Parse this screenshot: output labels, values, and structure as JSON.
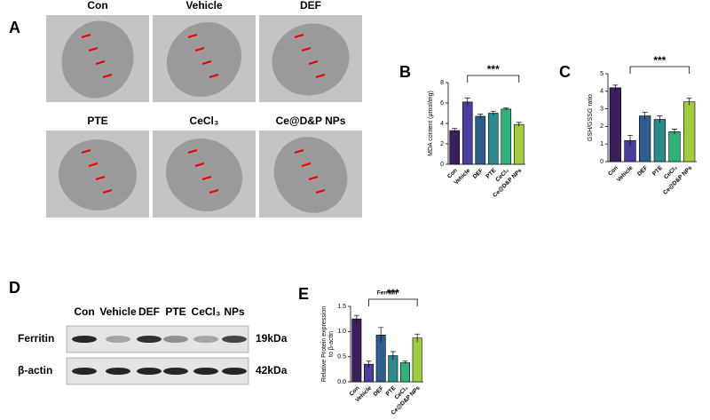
{
  "panel_labels": [
    "A",
    "B",
    "C",
    "D",
    "E"
  ],
  "micrographs": [
    "Con",
    "Vehicle",
    "DEF",
    "PTE",
    "CeCl₃",
    "Ce@D&P NPs"
  ],
  "blot": {
    "lanes": [
      "Con",
      "Vehicle",
      "DEF",
      "PTE",
      "CeCl₃",
      "NPs"
    ],
    "rows": [
      {
        "name": "Ferritin",
        "size": "19kDa"
      },
      {
        "name": "β-actin",
        "size": "42kDa"
      }
    ]
  },
  "chart_data": [
    {
      "type": "bar",
      "ylabel": "MDA content (μmol/mg)",
      "categories": [
        "Con",
        "Vehicle",
        "DEF",
        "PTE",
        "CeCl₃",
        "Ce@D&P NPs"
      ],
      "values": [
        3.3,
        6.1,
        4.7,
        5.0,
        5.4,
        3.9
      ],
      "errors": [
        0.2,
        0.4,
        0.2,
        0.2,
        0.1,
        0.2
      ],
      "colors": [
        "#3a1f5a",
        "#4a3f9e",
        "#2e5e8e",
        "#2a8b8b",
        "#2fb27a",
        "#9fcd3e"
      ],
      "ylim": [
        0,
        8
      ],
      "yticks": [
        0,
        2,
        4,
        6,
        8
      ],
      "annotation": "***"
    },
    {
      "type": "bar",
      "ylabel": "GSH/GSSG ratio",
      "categories": [
        "Con",
        "Vehicle",
        "DEF",
        "PTE",
        "CeCl₃",
        "Ce@D&P NPs"
      ],
      "values": [
        4.2,
        1.2,
        2.6,
        2.4,
        1.7,
        3.4
      ],
      "errors": [
        0.15,
        0.3,
        0.2,
        0.2,
        0.15,
        0.2
      ],
      "colors": [
        "#3a1f5a",
        "#4a3f9e",
        "#2e5e8e",
        "#2a8b8b",
        "#2fb27a",
        "#9fcd3e"
      ],
      "ylim": [
        0,
        5
      ],
      "yticks": [
        0,
        1,
        2,
        3,
        4,
        5
      ],
      "annotation": "***"
    },
    {
      "type": "bar",
      "title": "Ferritin",
      "ylabel": [
        "Relative Protein expression",
        "to β-actin"
      ],
      "categories": [
        "Con",
        "Vehicle",
        "DEF",
        "PTE",
        "CeCl₃",
        "Ce@D&P NPs"
      ],
      "values": [
        1.25,
        0.35,
        0.93,
        0.52,
        0.38,
        0.87
      ],
      "errors": [
        0.07,
        0.06,
        0.15,
        0.08,
        0.03,
        0.08
      ],
      "colors": [
        "#3a1f5a",
        "#4a3f9e",
        "#2e5e8e",
        "#2a8b8b",
        "#2fb27a",
        "#9fcd3e"
      ],
      "ylim": [
        0,
        1.5
      ],
      "yticks": [
        {
          "value": 0,
          "label": "0.0"
        },
        {
          "value": 0.5,
          "label": "0.5"
        },
        {
          "value": 1,
          "label": "1.0"
        },
        {
          "value": 1.5,
          "label": "1.5"
        }
      ],
      "annotation": "***"
    }
  ]
}
